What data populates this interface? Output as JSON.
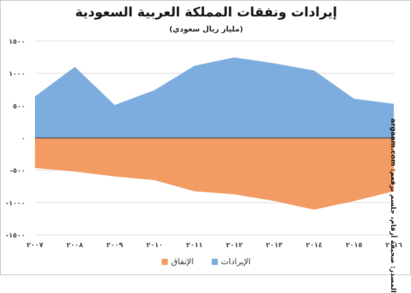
{
  "title": "إيرادات ونفقات المملكة العربية السعودية",
  "subtitle": "(مليار ريال سعودي)",
  "source_note": "argaam.com :المصدر: صحيفة أرقام، جلسم برقعم",
  "colors": {
    "revenue": "#7dadde",
    "expenditure": "#f29b63",
    "grid": "#d9d9d9",
    "axis": "#404040"
  },
  "chart_data": {
    "type": "area",
    "x": [
      "2007",
      "2008",
      "2009",
      "2010",
      "2011",
      "2012",
      "2013",
      "2014",
      "2015",
      "2016"
    ],
    "x_tick_labels": [
      "٢٠٠٧",
      "٢٠٠٨",
      "٢٠٠٩",
      "٢٠١٠",
      "٢٠١١",
      "٢٠١٢",
      "٢٠١٣",
      "٢٠١٤",
      "٢٠١٥",
      "٢٠١٦"
    ],
    "series": [
      {
        "name": "الإيرادات",
        "color": "#7dadde",
        "values": [
          642,
          1101,
          510,
          741,
          1118,
          1247,
          1156,
          1044,
          608,
          528
        ]
      },
      {
        "name": "الإنفاق",
        "color": "#f29b63",
        "values": [
          -466,
          -520,
          -596,
          -654,
          -826,
          -873,
          -976,
          -1110,
          -978,
          -825
        ]
      }
    ],
    "ylim": [
      -1500,
      1500
    ],
    "y_ticks": [
      1500,
      1000,
      500,
      0,
      -500,
      -1000,
      -1500
    ],
    "y_tick_labels": [
      "١٥٠٠",
      "١٠٠٠",
      "٥٠٠",
      "٠",
      "-٥٠٠",
      "-١٠٠٠",
      "-١٥٠٠"
    ],
    "grid": true,
    "legend_position": "bottom"
  }
}
